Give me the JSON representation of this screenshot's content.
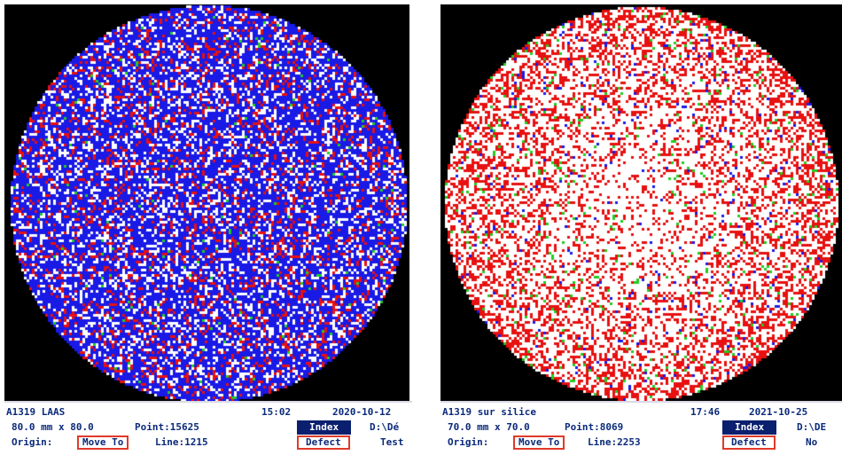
{
  "colors": {
    "background": "#000000",
    "blue": "#1a1ae6",
    "red": "#e81010",
    "white": "#ffffff",
    "green": "#22cc22",
    "label": "#0a2a7a",
    "button_fill": "#0a1f6e",
    "button_border": "#e03a2a"
  },
  "panels": [
    {
      "sample": "A1319 LAAS",
      "time": "15:02",
      "date": "2020-10-12",
      "size": "80.0 mm x 80.0",
      "point": "Point:15625",
      "path": "D:\\Dé",
      "origin_label": "Origin:",
      "move_to": "Move To",
      "line": "Line:1215",
      "index": "Index",
      "defect": "Defect",
      "note": "Test",
      "map": {
        "dominant": "blue",
        "fractions": {
          "white": 0.22,
          "red": 0.14,
          "green": 0.01
        }
      }
    },
    {
      "sample": "A1319 sur silice",
      "time": "17:46",
      "date": "2021-10-25",
      "size": "70.0 mm x 70.0",
      "point": "Point:8069",
      "path": "D:\\DE",
      "origin_label": "Origin:",
      "move_to": "Move To",
      "line": "Line:2253",
      "index": "Index",
      "defect": "Defect",
      "note": "No",
      "map": {
        "dominant": "white",
        "fractions": {
          "red": 0.3,
          "blue": 0.02,
          "green": 0.025
        }
      }
    }
  ]
}
